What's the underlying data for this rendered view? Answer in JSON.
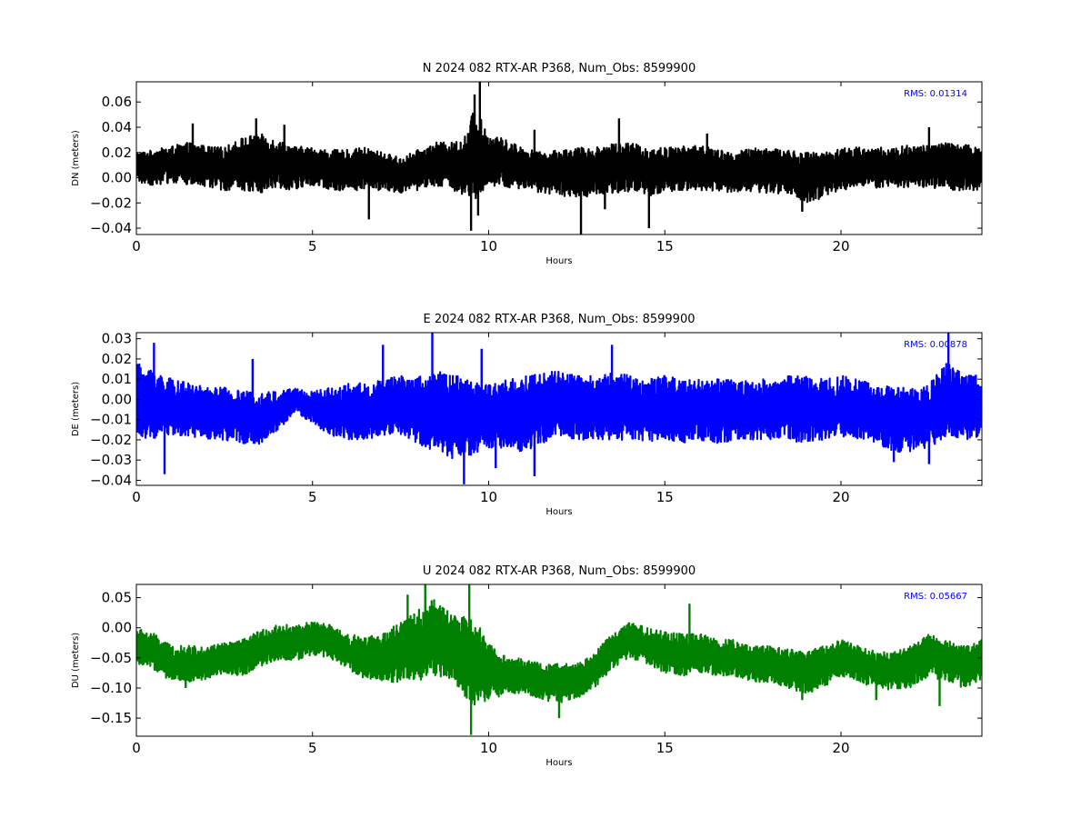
{
  "chart_data": [
    {
      "type": "line",
      "title": "N 2024 082 RTX-AR  P368, Num_Obs: 8599900",
      "xlabel": "Hours",
      "ylabel": "DN (meters)",
      "xlim": [
        0,
        24
      ],
      "ylim": [
        -0.045,
        0.076
      ],
      "xticks": [
        "0",
        "5",
        "10",
        "15",
        "20"
      ],
      "xtick_values": [
        0,
        5,
        10,
        15,
        20
      ],
      "yticks": [
        "0.06",
        "0.04",
        "0.02",
        "0.00",
        "−0.02",
        "−0.04"
      ],
      "ytick_values": [
        0.06,
        0.04,
        0.02,
        0.0,
        -0.02,
        -0.04
      ],
      "annotation": "RMS:  0.01314",
      "annotation_color": "#0000ff",
      "color": "#000000",
      "grid": false,
      "series": [
        {
          "x": [
            0,
            0.5,
            1,
            1.5,
            2,
            2.5,
            3,
            3.5,
            4,
            4.5,
            5,
            5.5,
            6,
            6.5,
            7,
            7.5,
            8,
            8.5,
            9,
            9.4,
            9.6,
            9.8,
            10,
            10.5,
            11,
            11.5,
            12,
            12.5,
            13,
            13.5,
            14,
            14.5,
            15,
            15.5,
            16,
            16.5,
            17,
            17.5,
            18,
            18.5,
            19,
            19.5,
            20,
            20.5,
            21,
            21.5,
            22,
            22.5,
            23,
            23.5,
            24
          ],
          "center": [
            0.01,
            0.01,
            0.012,
            0.012,
            0.01,
            0.008,
            0.012,
            0.012,
            0.014,
            0.008,
            0.01,
            0.006,
            0.006,
            0.008,
            0.006,
            0.002,
            0.006,
            0.012,
            0.01,
            0.008,
            0.014,
            0.012,
            0.016,
            0.014,
            0.008,
            0.006,
            0.008,
            0.008,
            0.006,
            0.01,
            0.01,
            0.006,
            0.008,
            0.008,
            0.01,
            0.006,
            0.004,
            0.008,
            0.008,
            0.006,
            0.002,
            0.006,
            0.008,
            0.008,
            0.008,
            0.008,
            0.01,
            0.01,
            0.01,
            0.008,
            0.008
          ],
          "upper": [
            0.02,
            0.022,
            0.025,
            0.028,
            0.025,
            0.024,
            0.032,
            0.035,
            0.03,
            0.025,
            0.024,
            0.022,
            0.022,
            0.024,
            0.02,
            0.016,
            0.022,
            0.028,
            0.028,
            0.035,
            0.06,
            0.045,
            0.035,
            0.03,
            0.024,
            0.02,
            0.022,
            0.024,
            0.024,
            0.028,
            0.028,
            0.024,
            0.024,
            0.025,
            0.026,
            0.022,
            0.02,
            0.024,
            0.024,
            0.022,
            0.02,
            0.02,
            0.024,
            0.024,
            0.024,
            0.024,
            0.026,
            0.026,
            0.028,
            0.026,
            0.026
          ],
          "lower": [
            -0.004,
            -0.006,
            -0.004,
            -0.006,
            -0.008,
            -0.01,
            -0.01,
            -0.012,
            -0.008,
            -0.01,
            -0.006,
            -0.01,
            -0.01,
            -0.01,
            -0.01,
            -0.012,
            -0.01,
            -0.006,
            -0.01,
            -0.02,
            -0.018,
            -0.014,
            -0.008,
            -0.008,
            -0.01,
            -0.012,
            -0.014,
            -0.016,
            -0.014,
            -0.012,
            -0.012,
            -0.016,
            -0.012,
            -0.01,
            -0.01,
            -0.012,
            -0.012,
            -0.012,
            -0.012,
            -0.014,
            -0.02,
            -0.016,
            -0.01,
            -0.008,
            -0.008,
            -0.008,
            -0.008,
            -0.008,
            -0.01,
            -0.01,
            -0.01
          ],
          "spikes": [
            [
              9.5,
              -0.042
            ],
            [
              9.75,
              0.076
            ],
            [
              9.7,
              -0.03
            ],
            [
              12.62,
              -0.045
            ],
            [
              6.6,
              -0.033
            ],
            [
              14.55,
              -0.04
            ],
            [
              13.3,
              -0.025
            ],
            [
              1.6,
              0.043
            ],
            [
              3.4,
              0.047
            ],
            [
              4.2,
              0.042
            ],
            [
              9.6,
              0.066
            ],
            [
              11.3,
              0.038
            ],
            [
              13.7,
              0.047
            ],
            [
              22.5,
              0.04
            ],
            [
              16.2,
              0.035
            ],
            [
              18.9,
              -0.027
            ]
          ]
        }
      ]
    },
    {
      "type": "line",
      "title": "E 2024 082 RTX-AR  P368, Num_Obs: 8599900",
      "xlabel": "Hours",
      "ylabel": "DE (meters)",
      "xlim": [
        0,
        24
      ],
      "ylim": [
        -0.0425,
        0.033
      ],
      "xticks": [
        "0",
        "5",
        "10",
        "15",
        "20"
      ],
      "xtick_values": [
        0,
        5,
        10,
        15,
        20
      ],
      "yticks": [
        "0.03",
        "0.02",
        "0.01",
        "0.00",
        "−0.01",
        "−0.02",
        "−0.03",
        "−0.04"
      ],
      "ytick_values": [
        0.03,
        0.02,
        0.01,
        0.0,
        -0.01,
        -0.02,
        -0.03,
        -0.04
      ],
      "annotation": "RMS:  0.00878",
      "annotation_color": "#0000ff",
      "color": "#0000ff",
      "grid": false,
      "series": [
        {
          "x": [
            0,
            0.5,
            1,
            1.5,
            2,
            2.5,
            3,
            3.5,
            4,
            4.5,
            5,
            5.5,
            6,
            6.5,
            7,
            7.5,
            8,
            8.5,
            9,
            9.5,
            10,
            10.5,
            11,
            11.5,
            12,
            12.5,
            13,
            13.5,
            14,
            14.5,
            15,
            15.5,
            16,
            16.5,
            17,
            17.5,
            18,
            18.5,
            19,
            19.5,
            20,
            20.5,
            21,
            21.5,
            22,
            22.5,
            23,
            23.5,
            24
          ],
          "center": [
            0.0,
            -0.002,
            -0.004,
            -0.004,
            -0.006,
            -0.006,
            -0.008,
            -0.008,
            -0.006,
            0.0,
            -0.004,
            -0.006,
            -0.006,
            -0.006,
            -0.004,
            -0.002,
            -0.006,
            -0.008,
            -0.01,
            -0.01,
            -0.008,
            -0.008,
            -0.008,
            -0.004,
            -0.002,
            -0.004,
            -0.004,
            -0.004,
            -0.004,
            -0.006,
            -0.004,
            -0.006,
            -0.004,
            -0.006,
            -0.006,
            -0.006,
            -0.006,
            -0.004,
            -0.004,
            -0.006,
            -0.004,
            -0.006,
            -0.008,
            -0.01,
            -0.01,
            -0.008,
            0.0,
            -0.004,
            -0.002
          ],
          "upper": [
            0.018,
            0.015,
            0.01,
            0.008,
            0.006,
            0.006,
            0.004,
            0.004,
            0.004,
            0.006,
            0.004,
            0.006,
            0.008,
            0.008,
            0.01,
            0.012,
            0.012,
            0.014,
            0.012,
            0.01,
            0.008,
            0.01,
            0.012,
            0.014,
            0.014,
            0.012,
            0.012,
            0.014,
            0.012,
            0.01,
            0.012,
            0.01,
            0.01,
            0.01,
            0.01,
            0.01,
            0.01,
            0.012,
            0.012,
            0.01,
            0.012,
            0.01,
            0.008,
            0.006,
            0.006,
            0.008,
            0.018,
            0.012,
            0.014
          ],
          "lower": [
            -0.018,
            -0.02,
            -0.018,
            -0.018,
            -0.02,
            -0.02,
            -0.022,
            -0.022,
            -0.016,
            -0.006,
            -0.012,
            -0.018,
            -0.02,
            -0.02,
            -0.018,
            -0.018,
            -0.022,
            -0.026,
            -0.03,
            -0.028,
            -0.024,
            -0.024,
            -0.026,
            -0.022,
            -0.018,
            -0.02,
            -0.02,
            -0.02,
            -0.02,
            -0.022,
            -0.02,
            -0.022,
            -0.02,
            -0.022,
            -0.02,
            -0.02,
            -0.02,
            -0.02,
            -0.022,
            -0.02,
            -0.018,
            -0.02,
            -0.022,
            -0.026,
            -0.026,
            -0.024,
            -0.018,
            -0.02,
            -0.018
          ],
          "spikes": [
            [
              0.8,
              -0.037
            ],
            [
              8.4,
              0.033
            ],
            [
              9.3,
              -0.042
            ],
            [
              23.05,
              0.033
            ],
            [
              7.0,
              0.027
            ],
            [
              0.5,
              0.028
            ],
            [
              9.8,
              0.025
            ],
            [
              10.2,
              -0.034
            ],
            [
              11.3,
              -0.038
            ],
            [
              13.5,
              0.027
            ],
            [
              3.3,
              0.02
            ],
            [
              21.5,
              -0.031
            ],
            [
              22.5,
              -0.032
            ]
          ]
        }
      ]
    },
    {
      "type": "line",
      "title": "U 2024 082 RTX-AR  P368, Num_Obs: 8599900",
      "xlabel": "Hours",
      "ylabel": "DU (meters)",
      "xlim": [
        0,
        24
      ],
      "ylim": [
        -0.18,
        0.072
      ],
      "xticks": [
        "0",
        "5",
        "10",
        "15",
        "20"
      ],
      "xtick_values": [
        0,
        5,
        10,
        15,
        20
      ],
      "yticks": [
        "0.05",
        "0.00",
        "−0.05",
        "−0.10",
        "−0.15"
      ],
      "ytick_values": [
        0.05,
        0.0,
        -0.05,
        -0.1,
        -0.15
      ],
      "annotation": "RMS:  0.05667",
      "annotation_color": "#0000ff",
      "color": "#008000",
      "grid": false,
      "series": [
        {
          "x": [
            0,
            0.5,
            1,
            1.5,
            2,
            2.5,
            3,
            3.5,
            4,
            4.5,
            5,
            5.5,
            6,
            6.5,
            7,
            7.5,
            8,
            8.5,
            9,
            9.5,
            10,
            10.5,
            11,
            11.5,
            12,
            12.5,
            13,
            13.5,
            14,
            14.5,
            15,
            15.5,
            16,
            16.5,
            17,
            17.5,
            18,
            18.5,
            19,
            19.5,
            20,
            20.5,
            21,
            21.5,
            22,
            22.5,
            23,
            23.5,
            24
          ],
          "center": [
            -0.03,
            -0.04,
            -0.06,
            -0.06,
            -0.055,
            -0.05,
            -0.05,
            -0.035,
            -0.025,
            -0.025,
            -0.015,
            -0.02,
            -0.04,
            -0.05,
            -0.05,
            -0.04,
            -0.03,
            -0.02,
            -0.04,
            -0.06,
            -0.07,
            -0.08,
            -0.08,
            -0.09,
            -0.09,
            -0.09,
            -0.07,
            -0.04,
            -0.02,
            -0.03,
            -0.04,
            -0.045,
            -0.04,
            -0.05,
            -0.05,
            -0.06,
            -0.06,
            -0.065,
            -0.07,
            -0.06,
            -0.05,
            -0.06,
            -0.07,
            -0.07,
            -0.065,
            -0.045,
            -0.05,
            -0.06,
            -0.05
          ],
          "upper": [
            0.0,
            -0.01,
            -0.03,
            -0.03,
            -0.03,
            -0.025,
            -0.02,
            -0.005,
            0.005,
            0.005,
            0.01,
            0.005,
            -0.01,
            -0.015,
            -0.01,
            0.01,
            0.03,
            0.05,
            0.02,
            0.02,
            -0.02,
            -0.05,
            -0.05,
            -0.06,
            -0.06,
            -0.06,
            -0.04,
            -0.01,
            0.01,
            0.0,
            -0.005,
            -0.01,
            -0.01,
            -0.02,
            -0.02,
            -0.03,
            -0.03,
            -0.035,
            -0.04,
            -0.03,
            -0.02,
            -0.03,
            -0.04,
            -0.04,
            -0.03,
            -0.01,
            -0.02,
            -0.03,
            -0.02
          ],
          "lower": [
            -0.06,
            -0.07,
            -0.09,
            -0.09,
            -0.085,
            -0.075,
            -0.08,
            -0.065,
            -0.055,
            -0.055,
            -0.045,
            -0.05,
            -0.07,
            -0.085,
            -0.09,
            -0.09,
            -0.09,
            -0.08,
            -0.09,
            -0.13,
            -0.12,
            -0.11,
            -0.11,
            -0.12,
            -0.125,
            -0.12,
            -0.1,
            -0.07,
            -0.05,
            -0.06,
            -0.075,
            -0.08,
            -0.075,
            -0.08,
            -0.08,
            -0.09,
            -0.09,
            -0.1,
            -0.11,
            -0.1,
            -0.08,
            -0.09,
            -0.1,
            -0.105,
            -0.1,
            -0.08,
            -0.09,
            -0.1,
            -0.085
          ],
          "spikes": [
            [
              9.5,
              -0.178
            ],
            [
              9.45,
              0.072
            ],
            [
              8.2,
              0.072
            ],
            [
              15.7,
              0.04
            ],
            [
              7.7,
              0.055
            ],
            [
              1.4,
              -0.1
            ],
            [
              18.9,
              -0.12
            ],
            [
              21.0,
              -0.12
            ],
            [
              22.8,
              -0.13
            ],
            [
              12.0,
              -0.15
            ]
          ]
        }
      ]
    }
  ]
}
